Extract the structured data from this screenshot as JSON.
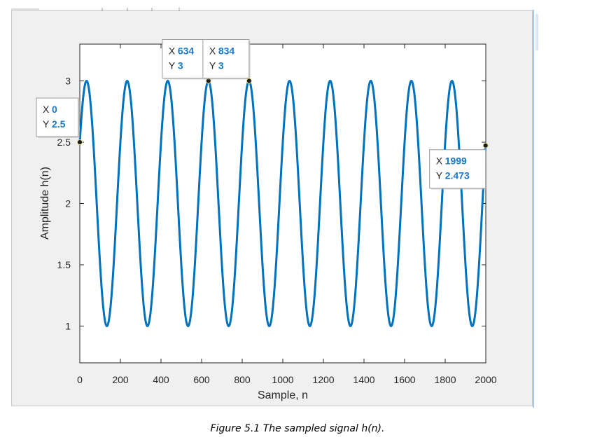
{
  "caption": "Figure 5.1 The sampled signal h(n).",
  "chart_data": {
    "type": "line",
    "title": "",
    "xlabel": "Sample, n",
    "ylabel": "Amplitude h(n)",
    "xlim": [
      0,
      2000
    ],
    "ylim": [
      0.7,
      3.3
    ],
    "xticks": [
      0,
      200,
      400,
      600,
      800,
      1000,
      1200,
      1400,
      1600,
      1800,
      2000
    ],
    "yticks": [
      1,
      1.5,
      2,
      2.5,
      3
    ],
    "grid": false,
    "line_color": "#0072bd",
    "series": [
      {
        "function": "2 + sin(2*pi*n/200 + pi/6)",
        "n_start": 0,
        "n_end": 1999,
        "period": 200,
        "offset": 2,
        "amplitude": 1
      }
    ],
    "datatips": [
      {
        "x_label": "X",
        "y_label": "Y",
        "x": "0",
        "y": "2.5",
        "placement": "left"
      },
      {
        "x_label": "X",
        "y_label": "Y",
        "x": "634",
        "y": "3",
        "placement": "above"
      },
      {
        "x_label": "X",
        "y_label": "Y",
        "x": "834",
        "y": "3",
        "placement": "above"
      },
      {
        "x_label": "X",
        "y_label": "Y",
        "x": "1999",
        "y": "2.473",
        "placement": "left-below"
      }
    ]
  }
}
